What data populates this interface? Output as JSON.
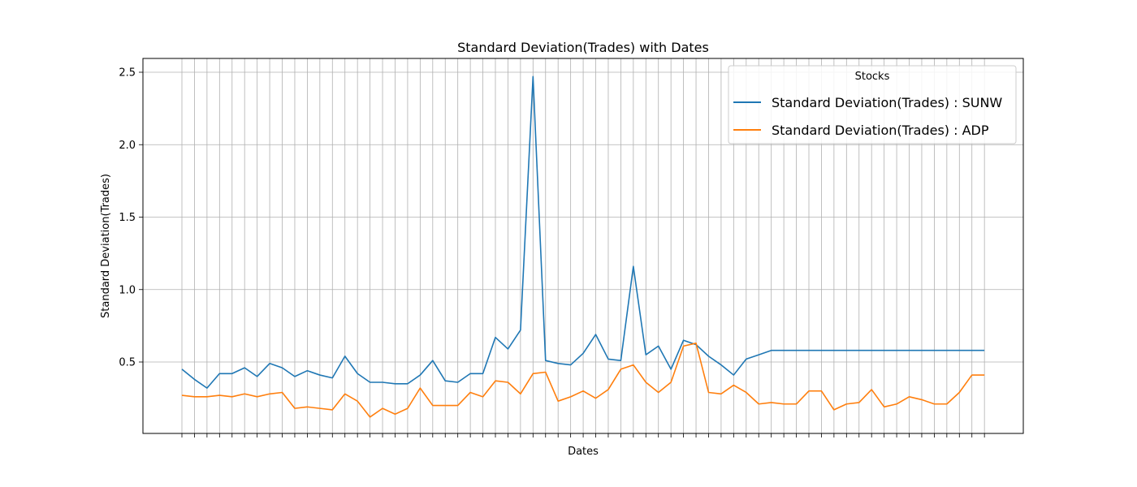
{
  "chart_data": {
    "type": "line",
    "title": "Standard Deviation(Trades) with Dates",
    "xlabel": "Dates",
    "ylabel": "Standard Deviation(Trades)",
    "x_tick_labels_shown": false,
    "point_count": 65,
    "ylim": [
      0.0,
      2.6
    ],
    "yticks": [
      0.5,
      1.0,
      1.5,
      2.0,
      2.5
    ],
    "grid": true,
    "legend": {
      "title": "Stocks",
      "placement": "top-right"
    },
    "series": [
      {
        "name": "Standard Deviation(Trades) : SUNW",
        "color": "#1f77b4",
        "values": [
          0.45,
          0.38,
          0.32,
          0.42,
          0.42,
          0.46,
          0.4,
          0.49,
          0.46,
          0.4,
          0.44,
          0.41,
          0.39,
          0.54,
          0.42,
          0.36,
          0.36,
          0.35,
          0.35,
          0.41,
          0.51,
          0.37,
          0.36,
          0.42,
          0.42,
          0.67,
          0.59,
          0.72,
          2.47,
          0.51,
          0.49,
          0.48,
          0.56,
          0.69,
          0.52,
          0.51,
          1.16,
          0.55,
          0.61,
          0.45,
          0.65,
          0.62,
          0.54,
          0.48,
          0.41,
          0.52,
          0.55,
          0.58,
          0.58,
          0.58,
          0.58,
          0.58,
          0.58,
          0.58,
          0.58,
          0.58,
          0.58,
          0.58,
          0.58,
          0.58,
          0.58,
          0.58,
          0.58,
          0.58,
          0.58
        ]
      },
      {
        "name": "Standard Deviation(Trades) : ADP",
        "color": "#ff7f0e",
        "values": [
          0.27,
          0.26,
          0.26,
          0.27,
          0.26,
          0.28,
          0.26,
          0.28,
          0.29,
          0.18,
          0.19,
          0.18,
          0.17,
          0.28,
          0.23,
          0.12,
          0.18,
          0.14,
          0.18,
          0.32,
          0.2,
          0.2,
          0.2,
          0.29,
          0.26,
          0.37,
          0.36,
          0.28,
          0.42,
          0.43,
          0.23,
          0.26,
          0.3,
          0.25,
          0.31,
          0.45,
          0.48,
          0.36,
          0.29,
          0.36,
          0.61,
          0.63,
          0.29,
          0.28,
          0.34,
          0.29,
          0.21,
          0.22,
          0.21,
          0.21,
          0.3,
          0.3,
          0.17,
          0.21,
          0.22,
          0.31,
          0.19,
          0.21,
          0.26,
          0.24,
          0.21,
          0.21,
          0.29,
          0.41,
          0.41
        ]
      }
    ]
  }
}
